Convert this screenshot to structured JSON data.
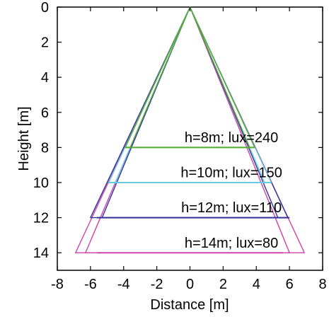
{
  "chart_data": {
    "type": "line",
    "title": "",
    "xlabel": "Distance [m]",
    "ylabel": "Height [m]",
    "xlim": [
      -8,
      8
    ],
    "ylim": [
      0,
      15
    ],
    "y_inverted": true,
    "grid": false,
    "legend": "none",
    "xticks": [
      "-8",
      "-6",
      "-4",
      "-2",
      "0",
      "2",
      "4",
      "6",
      "8"
    ],
    "yticks": [
      "0",
      "2",
      "4",
      "6",
      "8",
      "10",
      "12",
      "14"
    ],
    "series": [
      {
        "color": "#cc44aa",
        "apex": [
          0,
          0
        ],
        "outer_base": [
          [
            -6.9,
            14
          ],
          [
            6.9,
            14
          ]
        ],
        "inner_base": [
          [
            -6.3,
            14
          ],
          [
            6.0,
            14
          ]
        ],
        "line_y": 14,
        "line_x": [
          -5.6,
          5.6
        ]
      },
      {
        "color": "#333399",
        "apex": [
          0,
          0
        ],
        "outer_base": [
          [
            -6.0,
            12
          ],
          [
            5.9,
            12
          ]
        ],
        "inner_base": [
          [
            -5.3,
            12
          ],
          [
            5.3,
            12
          ]
        ],
        "line_y": 12,
        "line_x": [
          -5.6,
          6.0
        ]
      },
      {
        "color": "#66ccdd",
        "apex": [
          0,
          0
        ],
        "outer_base": [
          [
            -4.9,
            10
          ],
          [
            4.9,
            10
          ]
        ],
        "inner_base": [
          [
            -4.5,
            10
          ],
          [
            4.5,
            10
          ]
        ],
        "line_y": 10,
        "line_x": [
          -4.9,
          4.9
        ]
      },
      {
        "color": "#55aa33",
        "apex": [
          0,
          0
        ],
        "outer_base": [
          [
            -3.9,
            8
          ],
          [
            3.9,
            8
          ]
        ],
        "inner_base": [
          [
            -3.6,
            8
          ],
          [
            3.6,
            8
          ]
        ],
        "line_y": 8,
        "line_x": [
          -3.9,
          3.9
        ]
      }
    ],
    "annotations": [
      {
        "text": "h=8m; lux=240",
        "x": 2.5,
        "y": 7.7
      },
      {
        "text": "h=10m; lux=150",
        "x": 2.5,
        "y": 9.7
      },
      {
        "text": "h=12m; lux=110",
        "x": 2.5,
        "y": 11.7
      },
      {
        "text": "h=14m; lux=80",
        "x": 2.5,
        "y": 13.7
      }
    ]
  }
}
